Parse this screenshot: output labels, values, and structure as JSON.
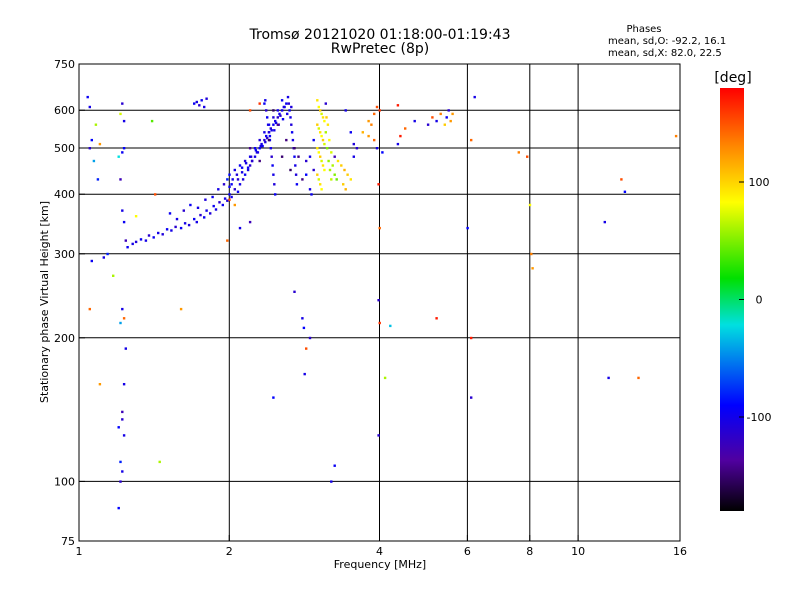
{
  "chart_data": {
    "type": "scatter",
    "title": "Tromsø 20121020 01:18:00-01:19:43",
    "subtitle": "RwPretec (8p)",
    "xlabel": "Frequency [MHz]",
    "ylabel": "Stationary phase Virtual Height [km]",
    "x_scale": "log",
    "y_scale": "log",
    "xlim": [
      1,
      16
    ],
    "ylim": [
      75,
      750
    ],
    "x_ticks": [
      1,
      2,
      4,
      6,
      8,
      10,
      16
    ],
    "x_tick_labels": [
      "1",
      "2",
      "4",
      "6",
      "8",
      "10",
      "16"
    ],
    "y_ticks": [
      75,
      100,
      200,
      300,
      400,
      500,
      600,
      750
    ],
    "y_tick_labels": [
      "75",
      "100",
      "200",
      "300",
      "400",
      "500",
      "600",
      "750"
    ],
    "x_grid": [
      2,
      4,
      6,
      8,
      10
    ],
    "y_grid": [
      100,
      200,
      300,
      400,
      500,
      600
    ],
    "grid": true,
    "stats": {
      "heading": "Phases",
      "line1": "mean, sd,O: -92.2, 16.1",
      "line2": "mean, sd,X:  82.0, 22.5"
    },
    "colorbar": {
      "label": "[deg]",
      "range": [
        -180,
        180
      ],
      "ticks": [
        100,
        0,
        -100
      ],
      "tick_labels": [
        "100",
        "0",
        "-100"
      ],
      "placement": "right"
    },
    "points": [
      [
        1.04,
        640,
        -95
      ],
      [
        1.05,
        610,
        -100
      ],
      [
        1.06,
        520,
        -90
      ],
      [
        1.05,
        500,
        -110
      ],
      [
        1.08,
        560,
        60
      ],
      [
        1.1,
        510,
        120
      ],
      [
        1.07,
        470,
        -40
      ],
      [
        1.09,
        430,
        -80
      ],
      [
        1.06,
        290,
        -95
      ],
      [
        1.12,
        295,
        -100
      ],
      [
        1.14,
        300,
        -80
      ],
      [
        1.17,
        270,
        60
      ],
      [
        1.05,
        230,
        140
      ],
      [
        1.1,
        160,
        120
      ],
      [
        1.22,
        620,
        -110
      ],
      [
        1.21,
        590,
        70
      ],
      [
        1.23,
        570,
        -100
      ],
      [
        1.22,
        490,
        -95
      ],
      [
        1.2,
        480,
        -20
      ],
      [
        1.23,
        500,
        -90
      ],
      [
        1.21,
        430,
        -120
      ],
      [
        1.22,
        370,
        -100
      ],
      [
        1.23,
        350,
        -95
      ],
      [
        1.24,
        320,
        -120
      ],
      [
        1.22,
        230,
        -100
      ],
      [
        1.23,
        220,
        140
      ],
      [
        1.21,
        215,
        -40
      ],
      [
        1.24,
        190,
        -100
      ],
      [
        1.23,
        160,
        -100
      ],
      [
        1.22,
        140,
        -120
      ],
      [
        1.22,
        135,
        -110
      ],
      [
        1.2,
        130,
        -90
      ],
      [
        1.23,
        125,
        -100
      ],
      [
        1.21,
        110,
        -80
      ],
      [
        1.22,
        105,
        -100
      ],
      [
        1.21,
        100,
        -110
      ],
      [
        1.2,
        88,
        -90
      ],
      [
        1.3,
        360,
        80
      ],
      [
        1.4,
        570,
        40
      ],
      [
        1.42,
        400,
        150
      ],
      [
        1.45,
        110,
        60
      ],
      [
        1.6,
        230,
        120
      ],
      [
        1.25,
        310,
        -95
      ],
      [
        1.28,
        315,
        -100
      ],
      [
        1.3,
        318,
        -105
      ],
      [
        1.33,
        322,
        -95
      ],
      [
        1.36,
        320,
        -100
      ],
      [
        1.38,
        328,
        -110
      ],
      [
        1.41,
        325,
        -95
      ],
      [
        1.44,
        332,
        -100
      ],
      [
        1.47,
        330,
        -105
      ],
      [
        1.5,
        338,
        -95
      ],
      [
        1.53,
        336,
        -100
      ],
      [
        1.56,
        342,
        -110
      ],
      [
        1.6,
        340,
        -95
      ],
      [
        1.63,
        348,
        -100
      ],
      [
        1.66,
        345,
        -105
      ],
      [
        1.7,
        355,
        -95
      ],
      [
        1.72,
        350,
        -100
      ],
      [
        1.75,
        362,
        -110
      ],
      [
        1.78,
        358,
        -95
      ],
      [
        1.8,
        370,
        -100
      ],
      [
        1.83,
        365,
        -105
      ],
      [
        1.86,
        378,
        -95
      ],
      [
        1.88,
        372,
        -100
      ],
      [
        1.91,
        385,
        -110
      ],
      [
        1.94,
        380,
        -95
      ],
      [
        1.96,
        392,
        -100
      ],
      [
        1.98,
        388,
        -105
      ],
      [
        2.0,
        400,
        -95
      ],
      [
        2.02,
        395,
        -100
      ],
      [
        2.05,
        410,
        -110
      ],
      [
        2.08,
        405,
        -95
      ],
      [
        2.1,
        420,
        -100
      ],
      [
        2.13,
        430,
        -105
      ],
      [
        2.15,
        440,
        -95
      ],
      [
        2.18,
        450,
        -100
      ],
      [
        2.2,
        460,
        -110
      ],
      [
        2.22,
        470,
        -95
      ],
      [
        2.25,
        480,
        -100
      ],
      [
        2.27,
        490,
        -105
      ],
      [
        2.3,
        500,
        -95
      ],
      [
        2.32,
        510,
        -100
      ],
      [
        2.35,
        520,
        -110
      ],
      [
        2.37,
        530,
        -95
      ],
      [
        2.4,
        540,
        -100
      ],
      [
        2.42,
        550,
        -105
      ],
      [
        2.45,
        560,
        -95
      ],
      [
        2.47,
        570,
        -100
      ],
      [
        2.5,
        580,
        -110
      ],
      [
        2.52,
        590,
        -95
      ],
      [
        2.55,
        600,
        -100
      ],
      [
        2.57,
        610,
        -105
      ],
      [
        2.6,
        620,
        -95
      ],
      [
        1.52,
        365,
        -95
      ],
      [
        1.57,
        355,
        -100
      ],
      [
        1.62,
        370,
        -110
      ],
      [
        1.67,
        380,
        -95
      ],
      [
        1.73,
        375,
        -100
      ],
      [
        1.79,
        390,
        -105
      ],
      [
        1.85,
        395,
        -95
      ],
      [
        1.9,
        410,
        -100
      ],
      [
        1.95,
        420,
        -110
      ],
      [
        2.0,
        415,
        -95
      ],
      [
        2.03,
        430,
        -100
      ],
      [
        2.07,
        440,
        -105
      ],
      [
        2.12,
        455,
        -95
      ],
      [
        2.16,
        465,
        -100
      ],
      [
        2.21,
        480,
        -110
      ],
      [
        2.26,
        495,
        -95
      ],
      [
        2.31,
        505,
        -100
      ],
      [
        2.36,
        515,
        -105
      ],
      [
        2.41,
        530,
        -95
      ],
      [
        2.46,
        545,
        -100
      ],
      [
        2.51,
        560,
        -110
      ],
      [
        2.56,
        575,
        -95
      ],
      [
        2.61,
        590,
        -100
      ],
      [
        2.66,
        610,
        -105
      ],
      [
        1.98,
        430,
        -80
      ],
      [
        2.0,
        440,
        -90
      ],
      [
        2.02,
        420,
        -95
      ],
      [
        2.05,
        450,
        -100
      ],
      [
        2.08,
        430,
        -110
      ],
      [
        2.1,
        460,
        -95
      ],
      [
        2.12,
        445,
        -100
      ],
      [
        2.15,
        470,
        -105
      ],
      [
        2.18,
        455,
        -95
      ],
      [
        2.2,
        480,
        -100
      ],
      [
        2.22,
        470,
        -110
      ],
      [
        2.25,
        500,
        -95
      ],
      [
        2.28,
        490,
        -100
      ],
      [
        2.3,
        520,
        -105
      ],
      [
        2.33,
        505,
        -95
      ],
      [
        2.35,
        540,
        -100
      ],
      [
        2.38,
        525,
        -110
      ],
      [
        2.4,
        560,
        -95
      ],
      [
        2.43,
        545,
        -100
      ],
      [
        2.45,
        580,
        -105
      ],
      [
        2.48,
        565,
        -95
      ],
      [
        2.5,
        600,
        -100
      ],
      [
        2.53,
        585,
        -110
      ],
      [
        2.55,
        630,
        -95
      ],
      [
        2.58,
        610,
        -100
      ],
      [
        2.35,
        620,
        -95
      ],
      [
        2.36,
        630,
        -100
      ],
      [
        2.37,
        600,
        -110
      ],
      [
        2.38,
        580,
        -95
      ],
      [
        2.39,
        560,
        -100
      ],
      [
        2.4,
        540,
        -105
      ],
      [
        2.41,
        520,
        -95
      ],
      [
        2.42,
        500,
        -100
      ],
      [
        2.43,
        480,
        -110
      ],
      [
        2.44,
        460,
        -95
      ],
      [
        2.45,
        440,
        -100
      ],
      [
        2.46,
        420,
        -105
      ],
      [
        2.47,
        400,
        -95
      ],
      [
        2.62,
        640,
        -100
      ],
      [
        2.63,
        620,
        -110
      ],
      [
        2.64,
        600,
        -95
      ],
      [
        2.65,
        580,
        -100
      ],
      [
        2.66,
        560,
        -105
      ],
      [
        2.67,
        540,
        -95
      ],
      [
        2.68,
        520,
        -100
      ],
      [
        2.69,
        500,
        -110
      ],
      [
        2.7,
        480,
        -95
      ],
      [
        2.71,
        460,
        -100
      ],
      [
        2.72,
        440,
        -105
      ],
      [
        2.73,
        420,
        -95
      ],
      [
        2.3,
        470,
        -140
      ],
      [
        2.4,
        520,
        -150
      ],
      [
        2.5,
        560,
        -135
      ],
      [
        2.55,
        480,
        -145
      ],
      [
        2.6,
        520,
        -140
      ],
      [
        2.65,
        450,
        -150
      ],
      [
        2.7,
        500,
        -145
      ],
      [
        2.75,
        480,
        -140
      ],
      [
        2.2,
        500,
        -135
      ],
      [
        2.45,
        600,
        -150
      ],
      [
        1.7,
        620,
        -95
      ],
      [
        1.72,
        625,
        -100
      ],
      [
        1.74,
        615,
        -110
      ],
      [
        1.76,
        630,
        -95
      ],
      [
        1.78,
        610,
        -100
      ],
      [
        1.8,
        635,
        -105
      ],
      [
        2.1,
        340,
        -100
      ],
      [
        1.98,
        320,
        140
      ],
      [
        2.0,
        390,
        150
      ],
      [
        2.05,
        380,
        120
      ],
      [
        2.2,
        350,
        -120
      ],
      [
        2.2,
        600,
        150
      ],
      [
        2.3,
        620,
        160
      ],
      [
        3.0,
        630,
        90
      ],
      [
        3.02,
        610,
        80
      ],
      [
        3.04,
        600,
        100
      ],
      [
        3.06,
        590,
        70
      ],
      [
        3.08,
        580,
        90
      ],
      [
        3.1,
        570,
        80
      ],
      [
        3.0,
        560,
        100
      ],
      [
        3.02,
        550,
        70
      ],
      [
        3.04,
        540,
        90
      ],
      [
        3.06,
        530,
        80
      ],
      [
        3.08,
        520,
        100
      ],
      [
        3.1,
        510,
        70
      ],
      [
        3.0,
        500,
        90
      ],
      [
        3.02,
        490,
        80
      ],
      [
        3.04,
        480,
        100
      ],
      [
        3.06,
        470,
        70
      ],
      [
        3.08,
        460,
        90
      ],
      [
        3.1,
        450,
        80
      ],
      [
        3.0,
        440,
        100
      ],
      [
        3.02,
        430,
        70
      ],
      [
        3.04,
        420,
        90
      ],
      [
        3.06,
        410,
        80
      ],
      [
        3.12,
        540,
        60
      ],
      [
        3.14,
        500,
        50
      ],
      [
        3.16,
        470,
        55
      ],
      [
        3.18,
        450,
        60
      ],
      [
        3.2,
        430,
        65
      ],
      [
        3.13,
        580,
        100
      ],
      [
        3.15,
        560,
        90
      ],
      [
        3.17,
        520,
        80
      ],
      [
        3.2,
        490,
        70
      ],
      [
        3.22,
        460,
        60
      ],
      [
        3.25,
        440,
        50
      ],
      [
        3.28,
        430,
        45
      ],
      [
        3.3,
        470,
        90
      ],
      [
        3.35,
        460,
        100
      ],
      [
        3.4,
        450,
        110
      ],
      [
        3.45,
        440,
        100
      ],
      [
        3.5,
        430,
        90
      ],
      [
        3.38,
        420,
        100
      ],
      [
        3.42,
        410,
        110
      ],
      [
        2.85,
        470,
        -110
      ],
      [
        2.9,
        480,
        -100
      ],
      [
        2.95,
        520,
        -95
      ],
      [
        2.85,
        440,
        -90
      ],
      [
        2.9,
        410,
        -100
      ],
      [
        2.95,
        450,
        -110
      ],
      [
        2.92,
        400,
        -95
      ],
      [
        2.8,
        430,
        -140
      ],
      [
        3.12,
        620,
        -110
      ],
      [
        3.25,
        480,
        -120
      ],
      [
        3.42,
        600,
        -100
      ],
      [
        3.5,
        540,
        -95
      ],
      [
        3.55,
        510,
        -105
      ],
      [
        3.6,
        500,
        -110
      ],
      [
        3.55,
        480,
        -100
      ],
      [
        3.7,
        540,
        110
      ],
      [
        3.8,
        530,
        120
      ],
      [
        3.85,
        560,
        130
      ],
      [
        3.9,
        520,
        140
      ],
      [
        3.95,
        500,
        -100
      ],
      [
        3.95,
        610,
        150
      ],
      [
        3.9,
        590,
        140
      ],
      [
        3.8,
        570,
        120
      ],
      [
        4.0,
        600,
        160
      ],
      [
        4.05,
        490,
        -90
      ],
      [
        3.98,
        420,
        170
      ],
      [
        4.0,
        340,
        140
      ],
      [
        3.98,
        240,
        -110
      ],
      [
        4.0,
        215,
        160
      ],
      [
        3.98,
        125,
        -110
      ],
      [
        4.2,
        212,
        -30
      ],
      [
        4.1,
        165,
        60
      ],
      [
        4.35,
        615,
        170
      ],
      [
        4.35,
        510,
        -100
      ],
      [
        4.4,
        530,
        170
      ],
      [
        4.5,
        550,
        140
      ],
      [
        4.7,
        570,
        -100
      ],
      [
        5.0,
        560,
        -110
      ],
      [
        5.1,
        580,
        150
      ],
      [
        5.2,
        570,
        -100
      ],
      [
        5.3,
        590,
        130
      ],
      [
        5.4,
        560,
        100
      ],
      [
        5.5,
        600,
        -110
      ],
      [
        5.45,
        580,
        -95
      ],
      [
        5.55,
        570,
        120
      ],
      [
        5.2,
        220,
        170
      ],
      [
        5.6,
        590,
        120
      ],
      [
        6.2,
        640,
        -100
      ],
      [
        6.1,
        520,
        140
      ],
      [
        6.0,
        340,
        -90
      ],
      [
        6.1,
        200,
        170
      ],
      [
        6.1,
        150,
        -110
      ],
      [
        7.6,
        490,
        130
      ],
      [
        7.9,
        480,
        150
      ],
      [
        8.0,
        380,
        80
      ],
      [
        8.05,
        300,
        130
      ],
      [
        8.1,
        280,
        120
      ],
      [
        11.3,
        350,
        -100
      ],
      [
        11.5,
        165,
        -100
      ],
      [
        12.2,
        430,
        150
      ],
      [
        12.4,
        405,
        -90
      ],
      [
        13.2,
        165,
        140
      ],
      [
        15.7,
        530,
        130
      ],
      [
        2.7,
        250,
        -110
      ],
      [
        2.8,
        220,
        -100
      ],
      [
        2.82,
        210,
        -90
      ],
      [
        2.85,
        190,
        150
      ],
      [
        2.83,
        168,
        -100
      ],
      [
        2.45,
        150,
        -90
      ],
      [
        3.2,
        100,
        -100
      ],
      [
        3.25,
        108,
        -95
      ],
      [
        2.9,
        200,
        -110
      ]
    ]
  }
}
